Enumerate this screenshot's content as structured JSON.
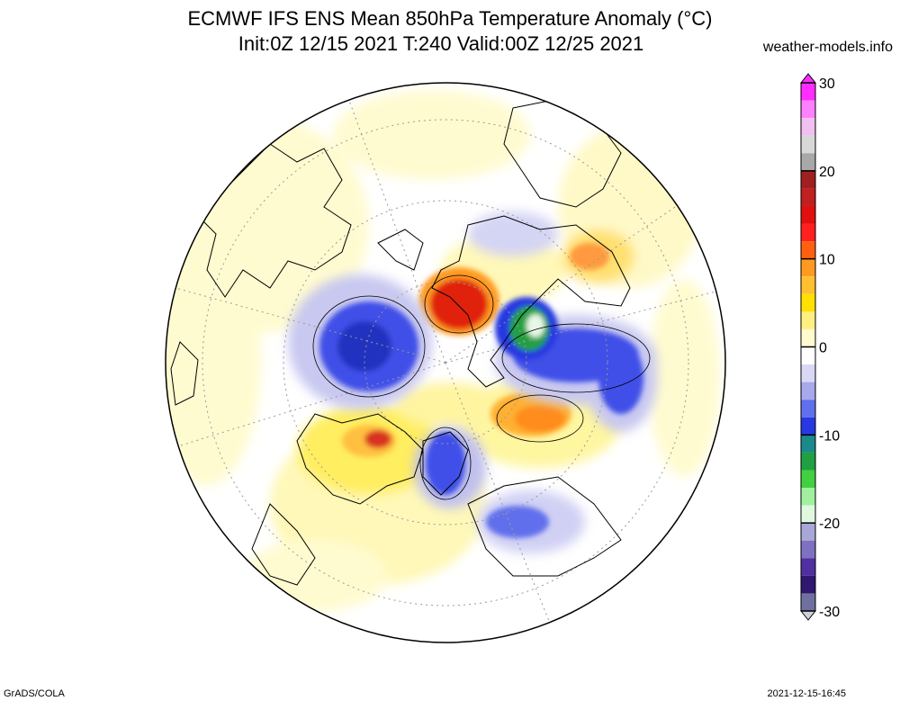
{
  "header": {
    "title": "ECMWF IFS ENS Mean 850hPa Temperature Anomaly (°C)",
    "subtitle": "Init:0Z 12/15 2021  T:240 Valid:00Z 12/25 2021",
    "site": "weather-models.info"
  },
  "colorbar": {
    "ticks": [
      {
        "label": "30",
        "value": 30
      },
      {
        "label": "20",
        "value": 20
      },
      {
        "label": "10",
        "value": 10
      },
      {
        "label": "0",
        "value": 0
      },
      {
        "label": "-10",
        "value": -10
      },
      {
        "label": "-20",
        "value": -20
      },
      {
        "label": "-30",
        "value": -30
      }
    ],
    "range": [
      -30,
      30
    ]
  },
  "footer": {
    "left": "GrADS/COLA",
    "right": "2021-12-15-16:45"
  },
  "colors": {
    "warm_light": "#fff8b8",
    "warm": "#ffe000",
    "orange": "#ff8c1a",
    "red": "#e01010",
    "cold_light": "#c8c8f0",
    "cold": "#2838e0",
    "cold_deep": "#1a8a3a"
  }
}
